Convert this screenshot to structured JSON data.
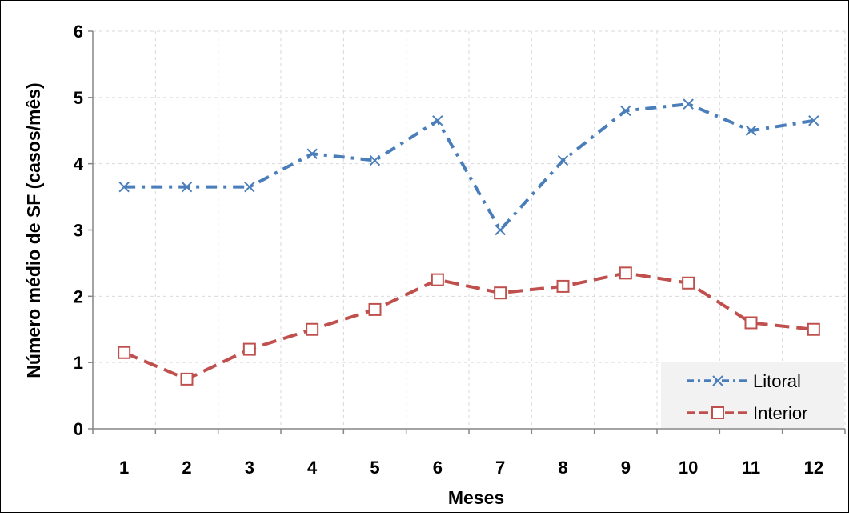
{
  "chart_data": {
    "type": "line",
    "title": "",
    "xlabel": "Meses",
    "ylabel": "Número médio de SF (casos/mês)",
    "x": [
      1,
      2,
      3,
      4,
      5,
      6,
      7,
      8,
      9,
      10,
      11,
      12
    ],
    "ylim": [
      0,
      6
    ],
    "yticks": [
      0,
      1,
      2,
      3,
      4,
      5,
      6
    ],
    "grid": true,
    "legend_position": "bottom-right",
    "series": [
      {
        "name": "Litoral",
        "color": "#4a7ebb",
        "marker": "x-mark",
        "line_style": "dash-dot",
        "values": [
          3.65,
          3.65,
          3.65,
          4.15,
          4.05,
          4.65,
          3.0,
          4.05,
          4.8,
          4.9,
          4.5,
          4.65
        ]
      },
      {
        "name": "Interior",
        "color": "#c0504d",
        "marker": "open-square",
        "line_style": "dashed",
        "values": [
          1.15,
          0.75,
          1.2,
          1.5,
          1.8,
          2.25,
          2.05,
          2.15,
          2.35,
          2.2,
          1.6,
          1.5
        ]
      }
    ]
  }
}
